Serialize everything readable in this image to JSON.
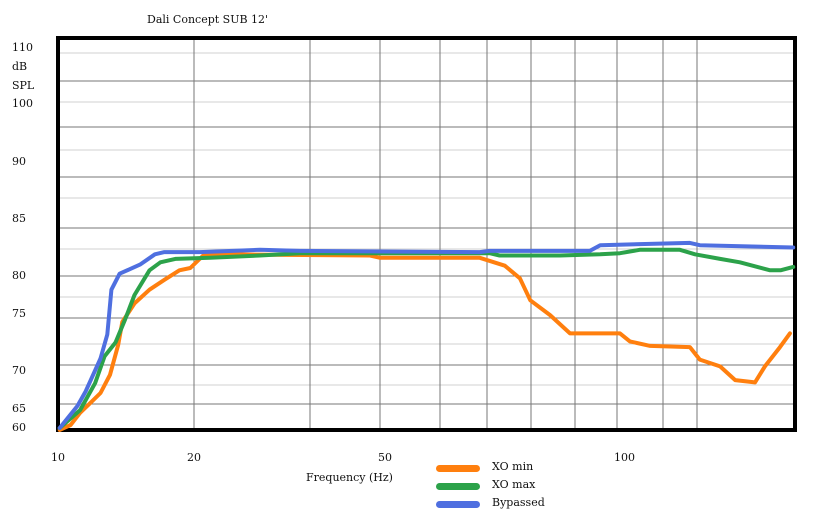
{
  "chart_data": {
    "type": "line",
    "title": "Dali Concept SUB 12'",
    "xlabel": "Frequency (Hz)",
    "ylabel": [
      "dB",
      "SPL"
    ],
    "x_ticks": [
      10,
      20,
      50,
      100
    ],
    "y_ticks": [
      60,
      65,
      70,
      75,
      80,
      85,
      90,
      100,
      110
    ],
    "xlim": [
      10,
      137
    ],
    "ylim": [
      60,
      110
    ],
    "grid": true,
    "legend_position": "bottom-center",
    "series": [
      {
        "name": "XO min",
        "color": "#ff7f0e",
        "x": [
          10.2,
          11,
          11.7,
          12.4,
          13.2,
          13.9,
          14.5,
          14.8,
          15.7,
          16.8,
          17.9,
          19,
          19.8,
          21.6,
          24.2,
          47.8,
          49.4,
          70.3,
          75.6,
          78.8,
          81,
          85.2,
          89.4,
          100,
          102.1,
          106.4,
          114.8,
          116.9,
          121.2,
          124.4,
          128.6,
          130.7,
          133.9,
          136
        ],
        "y": [
          59.5,
          60.8,
          64,
          65.7,
          67.1,
          69.5,
          72.3,
          74.3,
          76.4,
          78.2,
          79.5,
          80.5,
          80.7,
          81.8,
          81.9,
          81.8,
          81.6,
          81.6,
          80.9,
          79.7,
          76.8,
          74.9,
          73.3,
          73.3,
          72.6,
          72.2,
          72.1,
          71,
          70.4,
          68.8,
          68.5,
          70.4,
          72.1,
          73.3
        ]
      },
      {
        "name": "XO max",
        "color": "#2ca24a",
        "x": [
          10.2,
          11.7,
          12.8,
          13.5,
          14.3,
          15,
          15.7,
          16.8,
          17.6,
          18.7,
          22.7,
          30.5,
          36.8,
          53.4,
          72.4,
          74.5,
          87.3,
          95.8,
          100,
          104.2,
          112.7,
          115.9,
          121.2,
          125.4,
          131.8,
          134,
          136.7
        ],
        "y": [
          60,
          64.7,
          68.4,
          71.3,
          72.5,
          74.5,
          77.5,
          80.5,
          81.2,
          81.5,
          81.6,
          81.8,
          82,
          82,
          82,
          81.8,
          81.8,
          81.9,
          82,
          82.3,
          82.3,
          81.9,
          81.5,
          81.2,
          80.5,
          80.5,
          80.8
        ]
      },
      {
        "name": "Bypassed",
        "color": "#4f6fe0",
        "x": [
          10.2,
          11.5,
          12.1,
          13.2,
          13.7,
          14,
          14.6,
          16.1,
          17.2,
          17.9,
          21.1,
          30.5,
          36.8,
          70.3,
          72.4,
          93.6,
          95.8,
          114.8,
          116.9,
          136.7
        ],
        "y": [
          60,
          65.4,
          67.3,
          71.1,
          73.2,
          78.2,
          80.2,
          81,
          81.9,
          82.1,
          82.1,
          82.3,
          82.2,
          82.1,
          82.2,
          82.2,
          82.7,
          82.9,
          82.7,
          82.5
        ]
      }
    ]
  }
}
